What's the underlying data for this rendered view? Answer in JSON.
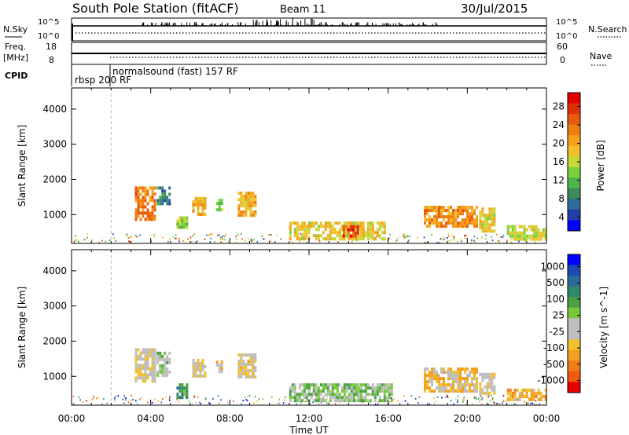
{
  "header": {
    "station": "South Pole Station (fitACF)",
    "beam": "Beam 11",
    "date": "30/Jul/2015"
  },
  "top_panels": {
    "nsky_label": "N.Sky",
    "nsearch_label": "N.Search",
    "count_ticks": [
      "10^5",
      "10^0"
    ],
    "freq_label": "Freq.",
    "freq_unit": "[MHz]",
    "freq_ticks": [
      "18",
      "8"
    ],
    "nave_label": "Nave",
    "nave_ticks": [
      "60",
      "0"
    ],
    "cpid_label": "CPID",
    "cpid_modes": [
      "rbsp 200 RF",
      "normalsound (fast) 157 RF"
    ]
  },
  "colors": {
    "power_scale": [
      "#0000ff",
      "#1f3da8",
      "#2e6b9a",
      "#3f8a5c",
      "#4db34a",
      "#7ad13c",
      "#c8d83a",
      "#f2c02a",
      "#f5a11c",
      "#ef7d12",
      "#e85a0c",
      "#e03008",
      "#e60000"
    ],
    "velocity_scale": [
      "#e60000",
      "#ef5a10",
      "#f27a18",
      "#f3a020",
      "#f0c030",
      "#bebebe",
      "#bebebe",
      "#78c83c",
      "#4aa044",
      "#2f8a6a",
      "#2a6a9a",
      "#1f48b4",
      "#0000ff"
    ]
  },
  "chart_data": [
    {
      "type": "heatmap",
      "name": "power",
      "xlabel": "",
      "ylabel": "Slant Range [km]",
      "colorbar_label": "Power [dB]",
      "colorbar_ticks": [
        "28",
        "24",
        "20",
        "16",
        "12",
        "8",
        "4"
      ],
      "x_ticks": [
        "00:00",
        "04:00",
        "08:00",
        "12:00",
        "16:00",
        "20:00",
        "00:00"
      ],
      "y_ticks": [
        "4000",
        "3000",
        "2000",
        "1000"
      ],
      "xlim_hours": [
        0,
        24
      ],
      "ylim_km": [
        180,
        4600
      ],
      "zlim": [
        0,
        32
      ],
      "echo_regions": [
        {
          "t0": 3.2,
          "t1": 4.2,
          "r0": 900,
          "r1": 1800,
          "value": 24
        },
        {
          "t0": 4.3,
          "t1": 5.0,
          "r0": 1300,
          "r1": 1800,
          "value": 8
        },
        {
          "t0": 5.3,
          "t1": 5.8,
          "r0": 650,
          "r1": 950,
          "value": 14
        },
        {
          "t0": 6.1,
          "t1": 6.8,
          "r0": 1050,
          "r1": 1500,
          "value": 20
        },
        {
          "t0": 7.3,
          "t1": 7.6,
          "r0": 1100,
          "r1": 1450,
          "value": 12
        },
        {
          "t0": 8.4,
          "t1": 9.3,
          "r0": 1000,
          "r1": 1650,
          "value": 20
        },
        {
          "t0": 11.0,
          "t1": 15.8,
          "r0": 300,
          "r1": 800,
          "value": 18
        },
        {
          "t0": 13.7,
          "t1": 14.5,
          "r0": 350,
          "r1": 700,
          "value": 27
        },
        {
          "t0": 17.8,
          "t1": 20.5,
          "r0": 650,
          "r1": 1250,
          "value": 22
        },
        {
          "t0": 20.6,
          "t1": 21.4,
          "r0": 500,
          "r1": 1200,
          "value": 18
        },
        {
          "t0": 22.0,
          "t1": 24.0,
          "r0": 300,
          "r1": 700,
          "value": 16
        }
      ]
    },
    {
      "type": "heatmap",
      "name": "velocity",
      "xlabel": "Time UT",
      "ylabel": "Slant Range [km]",
      "colorbar_label": "Velocity [m s^-1]",
      "colorbar_ticks": [
        "1000",
        "500",
        "100",
        "25",
        "-25",
        "-100",
        "-500",
        "-1000"
      ],
      "x_ticks": [
        "00:00",
        "04:00",
        "08:00",
        "12:00",
        "16:00",
        "20:00",
        "00:00"
      ],
      "y_ticks": [
        "4000",
        "3000",
        "2000",
        "1000"
      ],
      "xlim_hours": [
        0,
        24
      ],
      "ylim_km": [
        180,
        4600
      ],
      "zlim": [
        -1000,
        1000
      ],
      "echo_regions": [
        {
          "t0": 3.2,
          "t1": 4.2,
          "r0": 900,
          "r1": 1800,
          "value": -150
        },
        {
          "t0": 4.3,
          "t1": 5.0,
          "r0": 1000,
          "r1": 1700,
          "value": 80
        },
        {
          "t0": 5.3,
          "t1": 5.8,
          "r0": 400,
          "r1": 800,
          "value": 400
        },
        {
          "t0": 6.1,
          "t1": 6.8,
          "r0": 1050,
          "r1": 1500,
          "value": -150
        },
        {
          "t0": 7.3,
          "t1": 7.6,
          "r0": 1100,
          "r1": 1450,
          "value": -200
        },
        {
          "t0": 8.4,
          "t1": 9.3,
          "r0": 1000,
          "r1": 1650,
          "value": -200
        },
        {
          "t0": 11.0,
          "t1": 16.2,
          "r0": 300,
          "r1": 800,
          "value": 150
        },
        {
          "t0": 17.8,
          "t1": 20.5,
          "r0": 600,
          "r1": 1250,
          "value": -300
        },
        {
          "t0": 20.6,
          "t1": 21.4,
          "r0": 500,
          "r1": 1100,
          "value": -150
        },
        {
          "t0": 22.0,
          "t1": 24.0,
          "r0": 300,
          "r1": 650,
          "value": -400
        }
      ]
    }
  ]
}
